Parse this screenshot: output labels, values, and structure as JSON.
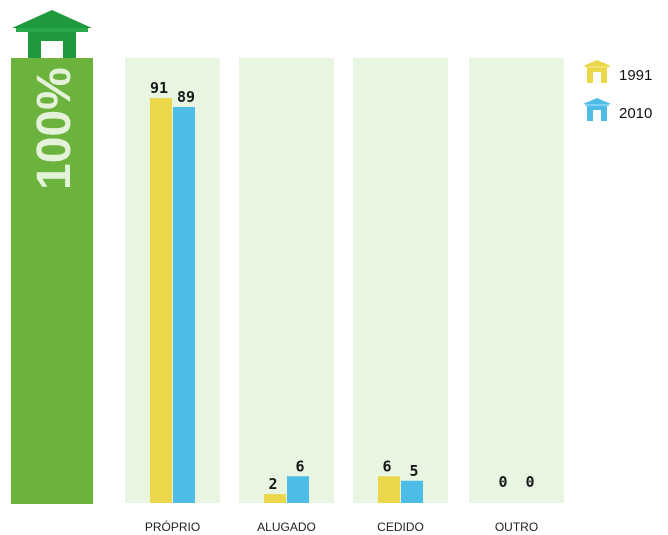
{
  "chart_data": {
    "type": "bar",
    "categories": [
      "PRÓPRIO",
      "ALUGADO",
      "CEDIDO",
      "OUTRO"
    ],
    "series": [
      {
        "name": "1991",
        "values": [
          91,
          2,
          6,
          0
        ]
      },
      {
        "name": "2010",
        "values": [
          89,
          6,
          5,
          0
        ]
      }
    ],
    "ylim": [
      0,
      100
    ],
    "reference_bar_label": "100%",
    "legend_position": "top-right"
  },
  "colors": {
    "series_1991": "#ead84a",
    "series_2010": "#4dbde8",
    "reference_bar": "#6cb33e",
    "column_background": "#e8f5e0",
    "house_icon": "#1e9a3c"
  },
  "icons": {
    "header": "house-icon",
    "legend": "house-icon"
  }
}
